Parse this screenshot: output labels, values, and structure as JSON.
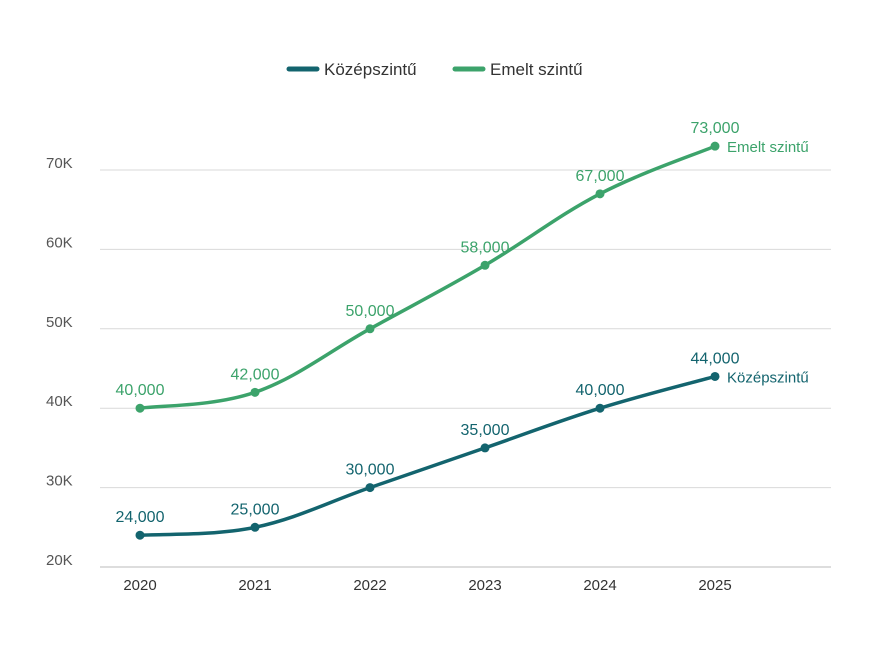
{
  "chart_data": {
    "type": "line",
    "title": "",
    "xlabel": "",
    "ylabel": "",
    "categories": [
      "2020",
      "2021",
      "2022",
      "2023",
      "2024",
      "2025"
    ],
    "ylim": [
      20000,
      75000
    ],
    "yticks": [
      20000,
      30000,
      40000,
      50000,
      60000,
      70000
    ],
    "ytick_labels": [
      "20K",
      "30K",
      "40K",
      "50K",
      "60K",
      "70K"
    ],
    "grid": true,
    "legend": "top-center",
    "series": [
      {
        "name": "Középszintű",
        "color": "#13646e",
        "values": [
          24000,
          25000,
          30000,
          35000,
          40000,
          44000
        ],
        "data_labels": [
          "24,000",
          "25,000",
          "30,000",
          "35,000",
          "40,000",
          "44,000"
        ],
        "end_label": "Középszintű"
      },
      {
        "name": "Emelt szintű",
        "color": "#3ca36b",
        "values": [
          40000,
          42000,
          50000,
          58000,
          67000,
          73000
        ],
        "data_labels": [
          "40,000",
          "42,000",
          "50,000",
          "58,000",
          "67,000",
          "73,000"
        ],
        "end_label": "Emelt szintű"
      }
    ]
  }
}
